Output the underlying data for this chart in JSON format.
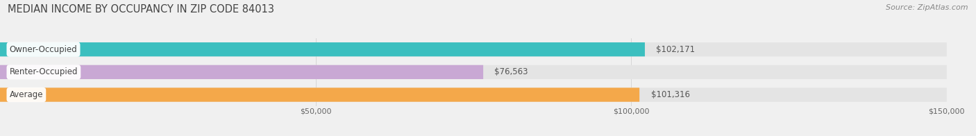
{
  "title": "MEDIAN INCOME BY OCCUPANCY IN ZIP CODE 84013",
  "source": "Source: ZipAtlas.com",
  "categories": [
    "Owner-Occupied",
    "Renter-Occupied",
    "Average"
  ],
  "values": [
    102171,
    76563,
    101316
  ],
  "labels": [
    "$102,171",
    "$76,563",
    "$101,316"
  ],
  "bar_colors": [
    "#3bbfbf",
    "#c9a8d4",
    "#f4a84a"
  ],
  "bar_bg_color": "#e8e8e8",
  "xlim": [
    0,
    150000
  ],
  "xticks": [
    50000,
    100000,
    150000
  ],
  "xtick_labels": [
    "$50,000",
    "$100,000",
    "$150,000"
  ],
  "title_fontsize": 10.5,
  "source_fontsize": 8,
  "label_fontsize": 8.5,
  "category_fontsize": 8.5,
  "tick_fontsize": 8,
  "bg_color": "#f0f0f0",
  "bar_bg_color2": "#e4e4e4",
  "bar_height": 0.62,
  "bar_spacing": 1.0
}
